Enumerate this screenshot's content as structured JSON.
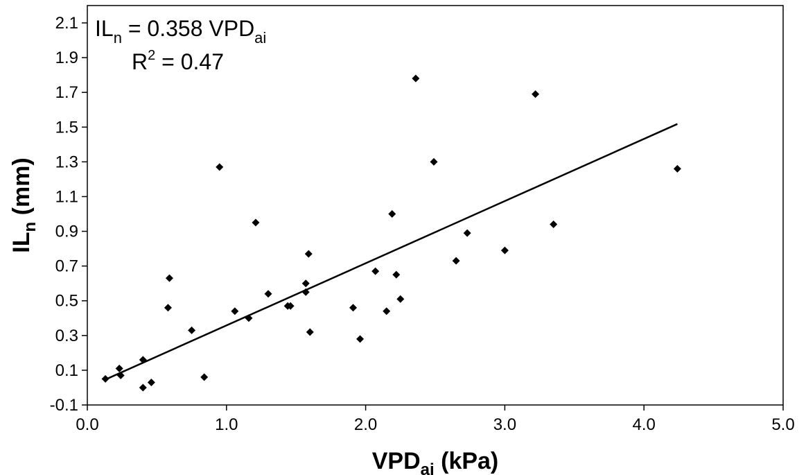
{
  "chart_data": {
    "type": "scatter",
    "title": "",
    "xlabel": {
      "main": "VPD",
      "sub": "ai",
      "rest": " (kPa)"
    },
    "ylabel": {
      "main": "IL",
      "sub": "n",
      "rest": " (mm)"
    },
    "xlim": [
      0.0,
      5.0
    ],
    "ylim": [
      -0.1,
      2.2
    ],
    "x_ticks": [
      0.0,
      1.0,
      2.0,
      3.0,
      4.0,
      5.0
    ],
    "x_tick_labels": [
      "0.0",
      "1.0",
      "2.0",
      "3.0",
      "4.0",
      "5.0"
    ],
    "y_ticks": [
      -0.1,
      0.1,
      0.3,
      0.5,
      0.7,
      0.9,
      1.1,
      1.3,
      1.5,
      1.7,
      1.9,
      2.1
    ],
    "y_tick_labels": [
      "-0.1",
      "0.1",
      "0.3",
      "0.5",
      "0.7",
      "0.9",
      "1.1",
      "1.3",
      "1.5",
      "1.7",
      "1.9",
      "2.1"
    ],
    "grid": false,
    "legend": "none",
    "marker_color": "#000000",
    "points": [
      {
        "x": 0.13,
        "y": 0.05
      },
      {
        "x": 0.23,
        "y": 0.11
      },
      {
        "x": 0.24,
        "y": 0.07
      },
      {
        "x": 0.4,
        "y": 0.16
      },
      {
        "x": 0.4,
        "y": 0.0
      },
      {
        "x": 0.46,
        "y": 0.03
      },
      {
        "x": 0.58,
        "y": 0.46
      },
      {
        "x": 0.59,
        "y": 0.63
      },
      {
        "x": 0.75,
        "y": 0.33
      },
      {
        "x": 0.84,
        "y": 0.06
      },
      {
        "x": 0.95,
        "y": 1.27
      },
      {
        "x": 1.06,
        "y": 0.44
      },
      {
        "x": 1.16,
        "y": 0.4
      },
      {
        "x": 1.21,
        "y": 0.95
      },
      {
        "x": 1.3,
        "y": 0.54
      },
      {
        "x": 1.44,
        "y": 0.47
      },
      {
        "x": 1.46,
        "y": 0.47
      },
      {
        "x": 1.57,
        "y": 0.6
      },
      {
        "x": 1.57,
        "y": 0.55
      },
      {
        "x": 1.59,
        "y": 0.77
      },
      {
        "x": 1.6,
        "y": 0.32
      },
      {
        "x": 1.91,
        "y": 0.46
      },
      {
        "x": 1.96,
        "y": 0.28
      },
      {
        "x": 2.07,
        "y": 0.67
      },
      {
        "x": 2.15,
        "y": 0.44
      },
      {
        "x": 2.19,
        "y": 1.0
      },
      {
        "x": 2.22,
        "y": 0.65
      },
      {
        "x": 2.25,
        "y": 0.51
      },
      {
        "x": 2.36,
        "y": 1.78
      },
      {
        "x": 2.49,
        "y": 1.3
      },
      {
        "x": 2.65,
        "y": 0.73
      },
      {
        "x": 2.73,
        "y": 0.89
      },
      {
        "x": 3.0,
        "y": 0.79
      },
      {
        "x": 3.22,
        "y": 1.69
      },
      {
        "x": 3.35,
        "y": 0.94
      },
      {
        "x": 4.24,
        "y": 1.26
      }
    ],
    "fit_line": {
      "slope": 0.358,
      "x_start": 0.13,
      "x_end": 4.24
    },
    "annotations": {
      "equation": {
        "lhs_main": "IL",
        "lhs_sub": "n",
        "mid": " = 0.358 VPD",
        "rhs_sub": "ai"
      },
      "r2": {
        "main": "R",
        "sup": "2",
        "rest": " = 0.47"
      }
    }
  }
}
